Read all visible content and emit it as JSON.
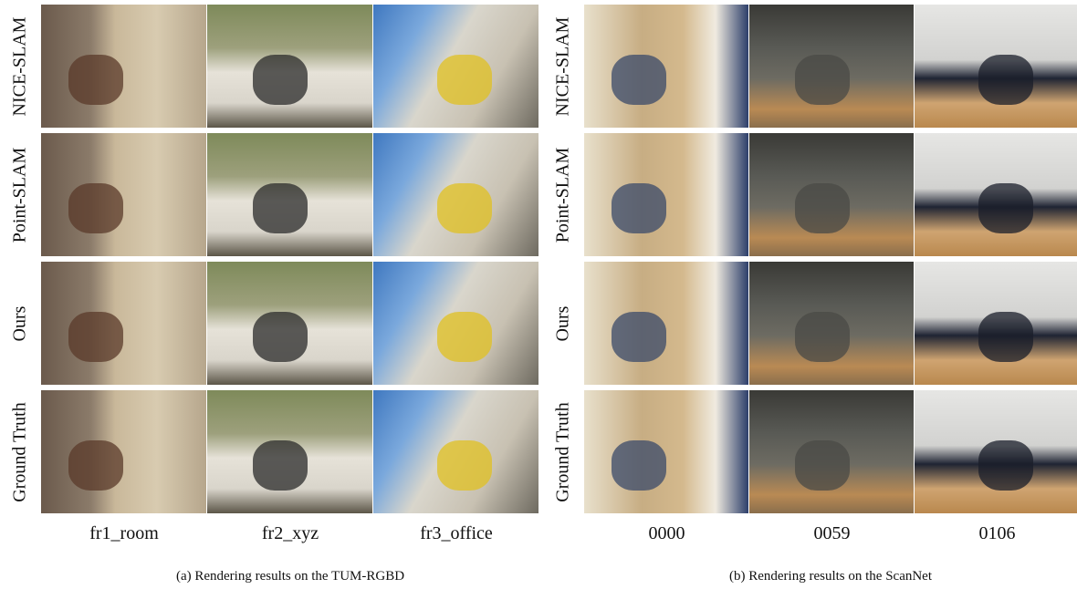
{
  "panels": [
    {
      "row_labels": [
        "NICE-SLAM",
        "Point-SLAM",
        "Ours",
        "Ground Truth"
      ],
      "column_labels": [
        "fr1_room",
        "fr2_xyz",
        "fr3_office"
      ],
      "caption": "(a)  Rendering results on the TUM-RGBD"
    },
    {
      "row_labels": [
        "NICE-SLAM",
        "Point-SLAM",
        "Ours",
        "Ground Truth"
      ],
      "column_labels": [
        "0000",
        "0059",
        "0106"
      ],
      "caption": "(b)  Rendering results on the ScanNet"
    }
  ]
}
